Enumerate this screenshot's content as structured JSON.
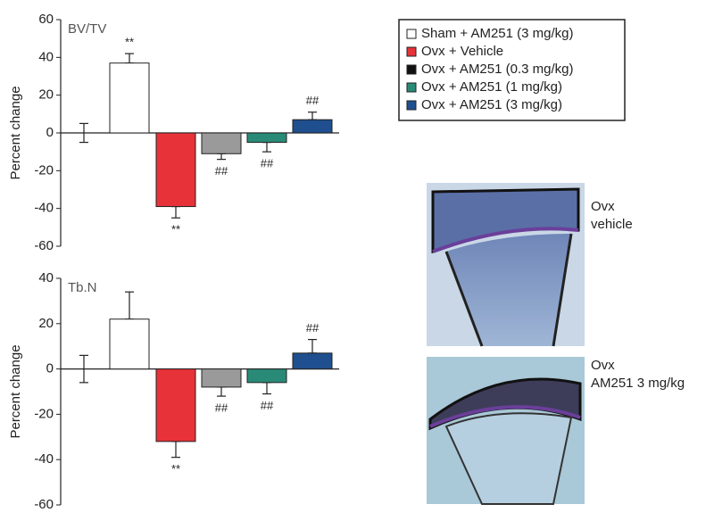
{
  "chart_data": [
    {
      "type": "bar",
      "title": "BV/TV",
      "ylabel": "Percent change",
      "categories": [
        null,
        null,
        null,
        null,
        null,
        null
      ],
      "values": [
        0,
        37,
        -39,
        -11,
        -5,
        7
      ],
      "errors": [
        5,
        5,
        6,
        3,
        5,
        4
      ],
      "colors": [
        null,
        "#ffffff",
        "#e8323a",
        "#9a9a9a",
        "#2a8a78",
        "#1f4f8e"
      ],
      "annotations": [
        null,
        "**",
        "**",
        "##",
        "##",
        "##"
      ],
      "ylim": [
        -60,
        60
      ],
      "yticks": [
        -60,
        -40,
        -20,
        0,
        20,
        40,
        60
      ]
    },
    {
      "type": "bar",
      "title": "Tb.N",
      "ylabel": "Percent change",
      "categories": [
        null,
        null,
        null,
        null,
        null,
        null
      ],
      "values": [
        0,
        22,
        -32,
        -8,
        -6,
        7
      ],
      "errors": [
        6,
        12,
        7,
        4,
        5,
        6
      ],
      "colors": [
        null,
        "#ffffff",
        "#e8323a",
        "#9a9a9a",
        "#2a8a78",
        "#1f4f8e"
      ],
      "annotations": [
        null,
        null,
        "**",
        "##",
        "##",
        "##"
      ],
      "ylim": [
        -60,
        40
      ],
      "yticks": [
        -60,
        -40,
        -20,
        0,
        20,
        40
      ]
    }
  ],
  "legend": [
    {
      "label": "Sham + AM251 (3 mg/kg)",
      "color": "#ffffff"
    },
    {
      "label": "Ovx + Vehicle",
      "color": "#e8323a"
    },
    {
      "label": "Ovx + AM251 (0.3 mg/kg)",
      "color": "#111111"
    },
    {
      "label": "Ovx + AM251 (1 mg/kg)",
      "color": "#2a8a78"
    },
    {
      "label": "Ovx + AM251 (3 mg/kg)",
      "color": "#1f4f8e"
    }
  ],
  "panels": [
    {
      "labels": [
        "Ovx",
        "vehicle"
      ]
    },
    {
      "labels": [
        "Ovx",
        "AM251 3 mg/kg"
      ]
    }
  ]
}
